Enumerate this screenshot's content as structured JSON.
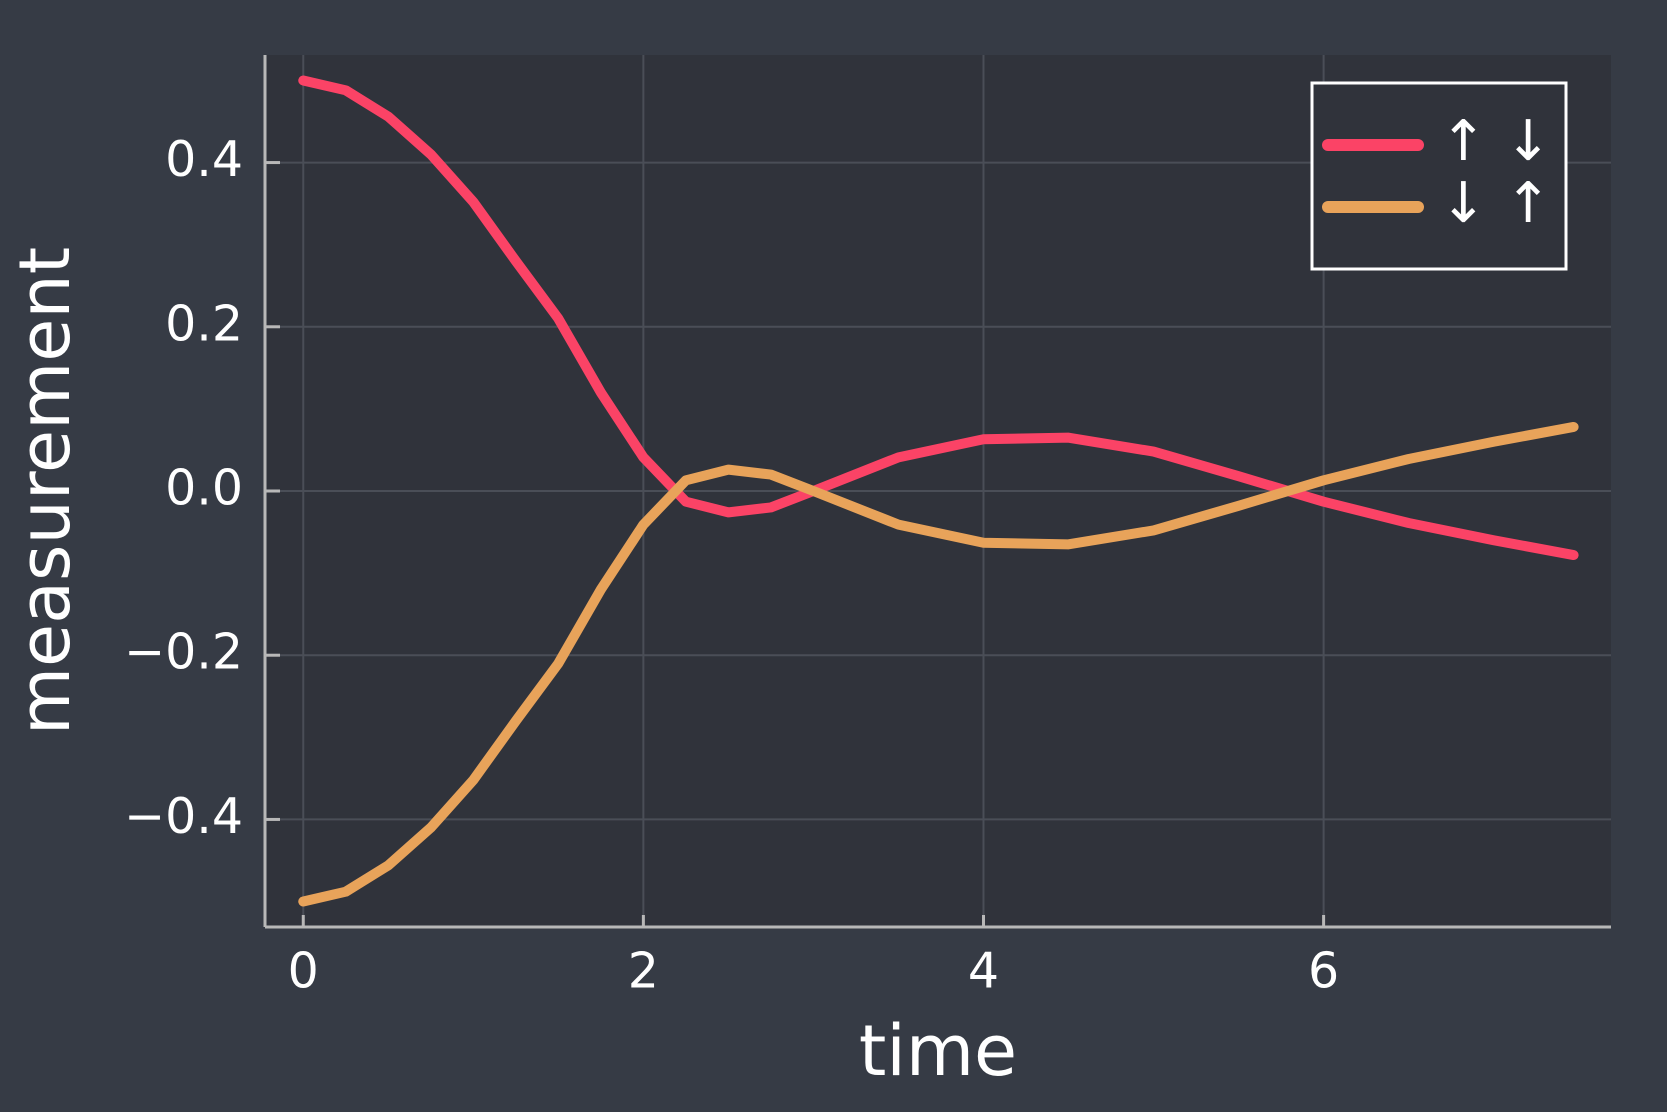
{
  "chart_data": {
    "type": "line",
    "xlabel": "time",
    "ylabel": "measurement",
    "x": [
      0,
      0.25,
      0.5,
      0.75,
      1,
      1.25,
      1.5,
      1.75,
      2,
      2.25,
      2.5,
      2.75,
      3,
      3.5,
      4,
      4.5,
      5,
      5.5,
      6,
      6.5,
      7,
      7.47
    ],
    "series": [
      {
        "name": "↑ ↓",
        "color": "#fb4366",
        "values": [
          0.5,
          0.488,
          0.456,
          0.41,
          0.352,
          0.28,
          0.21,
          0.12,
          0.041,
          -0.013,
          -0.026,
          -0.02,
          0.0,
          0.041,
          0.063,
          0.065,
          0.048,
          0.018,
          -0.013,
          -0.039,
          -0.06,
          -0.078
        ]
      },
      {
        "name": "↓ ↑",
        "color": "#e8a35a",
        "values": [
          -0.5,
          -0.488,
          -0.456,
          -0.41,
          -0.352,
          -0.28,
          -0.21,
          -0.12,
          -0.041,
          0.013,
          0.026,
          0.02,
          0.0,
          -0.041,
          -0.063,
          -0.065,
          -0.048,
          -0.018,
          0.013,
          0.039,
          0.06,
          0.078
        ]
      }
    ],
    "xlim": [
      -0.225,
      7.69
    ],
    "ylim": [
      -0.531,
      0.531
    ],
    "xticks": [
      0,
      2,
      4,
      6
    ],
    "yticks": [
      {
        "value": -0.4,
        "label": "−0.4"
      },
      {
        "value": -0.2,
        "label": "−0.2"
      },
      {
        "value": 0,
        "label": "0.0"
      },
      0.2,
      0.4
    ],
    "grid": true,
    "legend": "top-right"
  }
}
